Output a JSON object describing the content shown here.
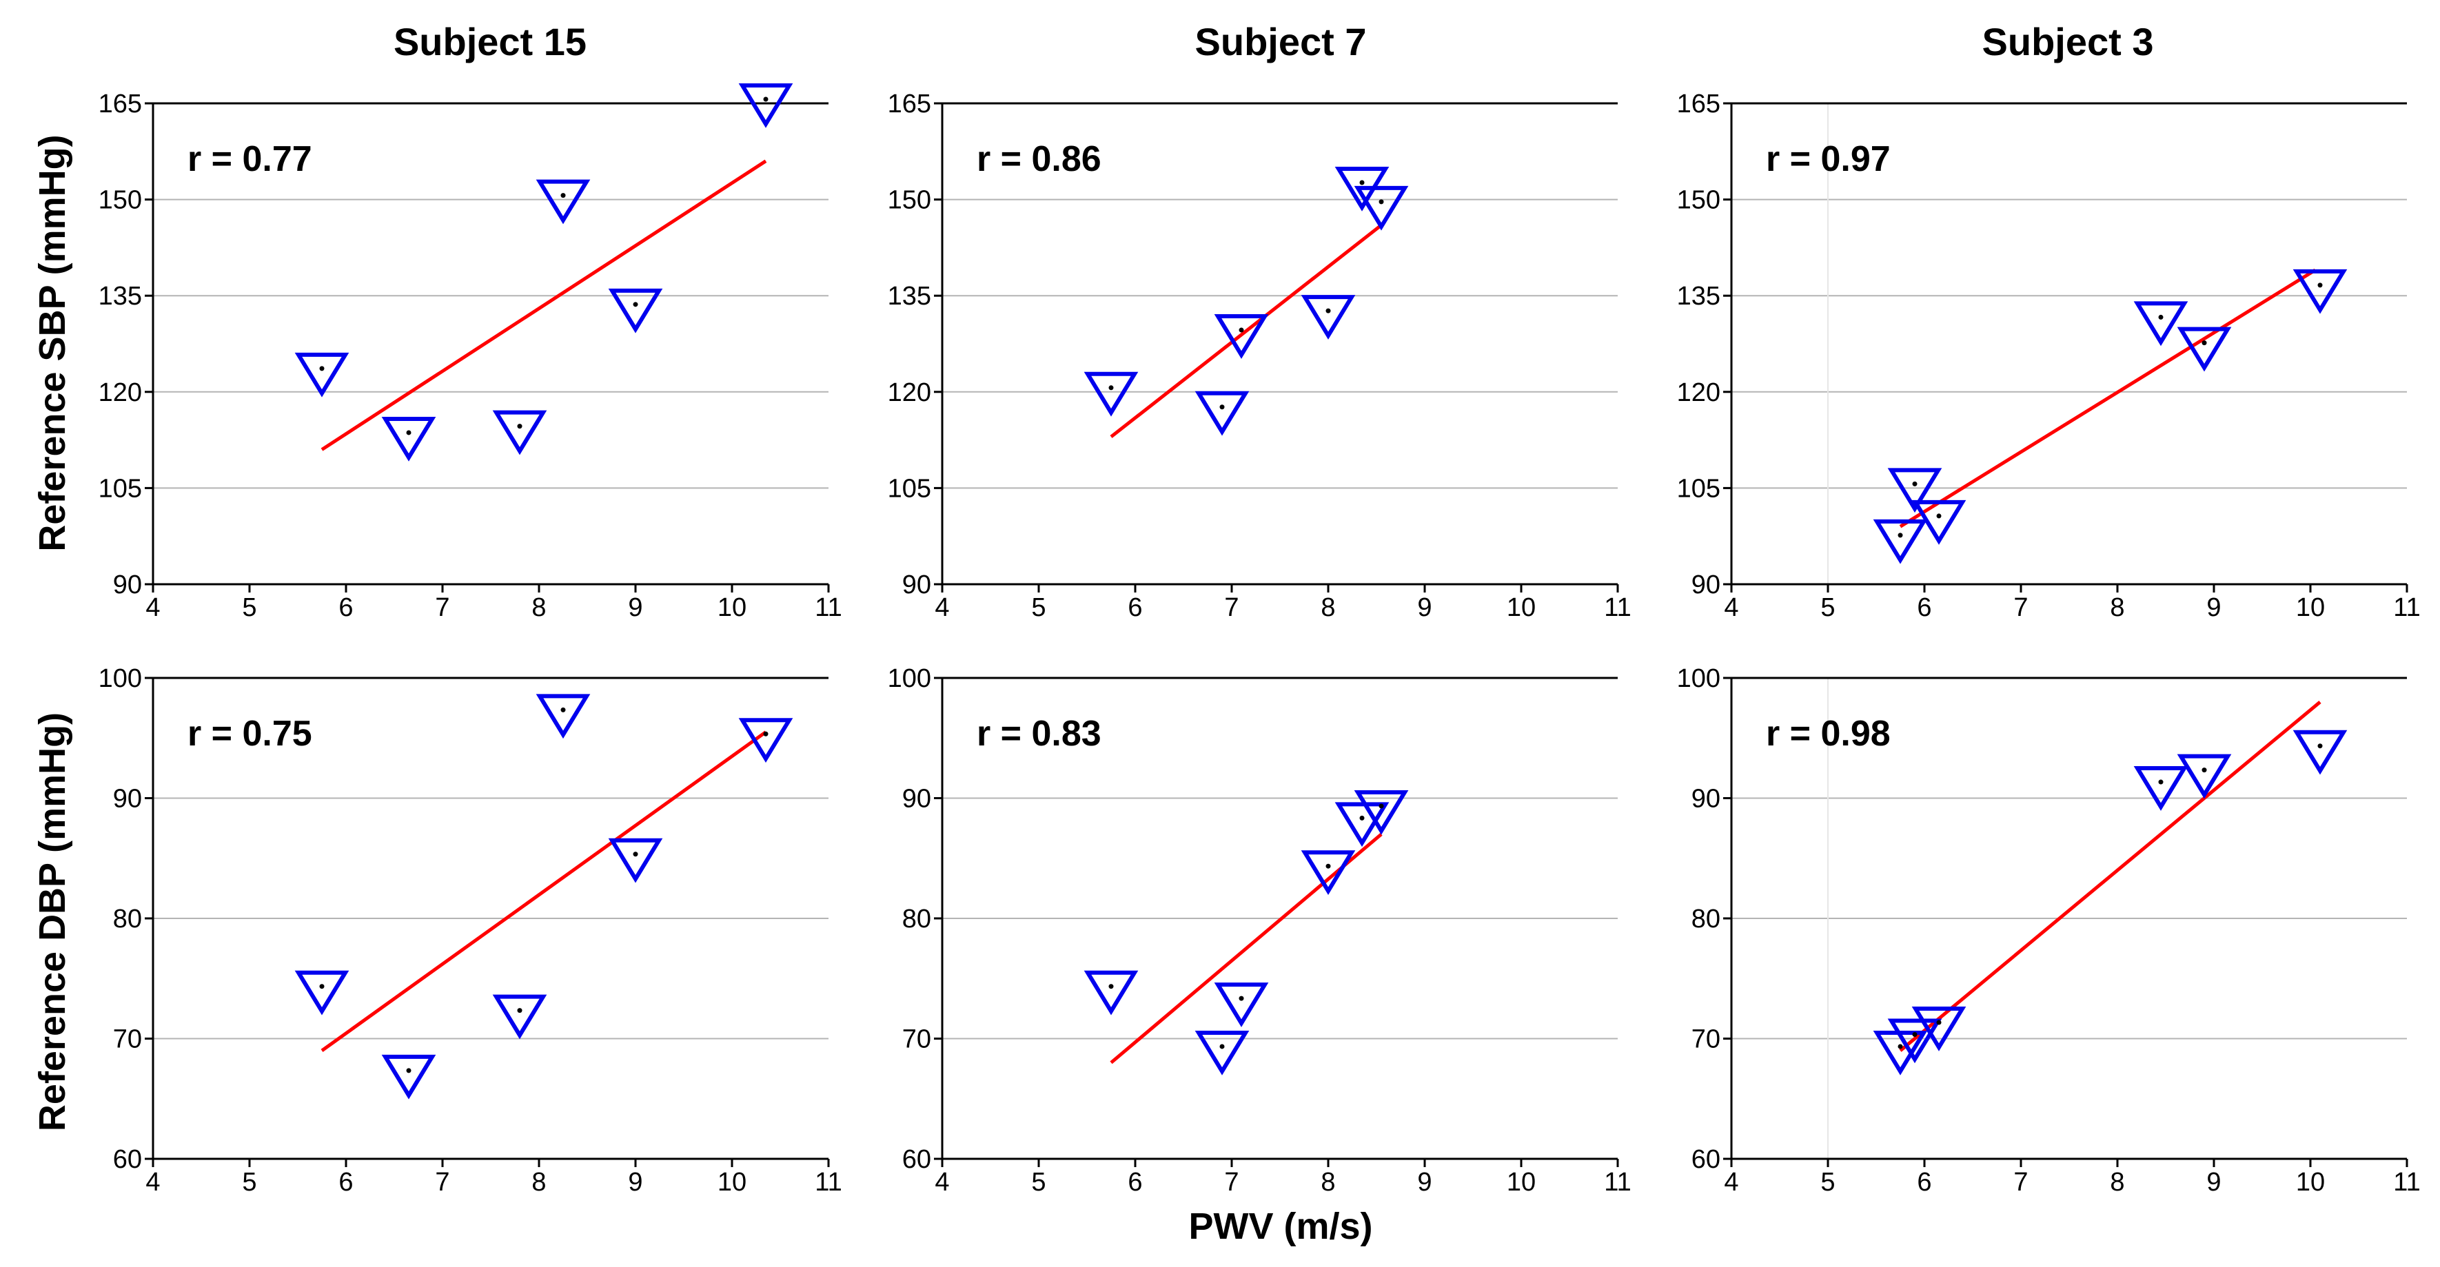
{
  "figure": {
    "x_axis_label": "PWV (m/s)",
    "row_labels": [
      "Reference SBP (mmHg)",
      "Reference DBP (mmHg)"
    ],
    "column_titles": [
      "Subject 15",
      "Subject 7",
      "Subject 3"
    ],
    "marker_color": "#0000ee",
    "fit_color": "#ff0000",
    "grid_color": "#b4b4b4"
  },
  "chart_data": [
    {
      "type": "scatter",
      "title": "Subject 15",
      "ylabel": "Reference SBP (mmHg)",
      "xlim": [
        4,
        11
      ],
      "ylim": [
        90,
        165
      ],
      "xticks": [
        4,
        5,
        6,
        7,
        8,
        9,
        10,
        11
      ],
      "yticks": [
        90,
        105,
        120,
        135,
        150,
        165
      ],
      "annotation": "r = 0.77",
      "points": [
        {
          "x": 5.75,
          "y": 123
        },
        {
          "x": 6.65,
          "y": 113
        },
        {
          "x": 7.8,
          "y": 114
        },
        {
          "x": 8.25,
          "y": 150
        },
        {
          "x": 9.0,
          "y": 133
        },
        {
          "x": 10.35,
          "y": 165
        }
      ],
      "fit": [
        [
          5.75,
          111
        ],
        [
          10.35,
          156
        ]
      ],
      "grid": "horizontal"
    },
    {
      "type": "scatter",
      "title": "Subject 7",
      "ylabel": "Reference SBP (mmHg)",
      "xlim": [
        4,
        11
      ],
      "ylim": [
        90,
        165
      ],
      "xticks": [
        4,
        5,
        6,
        7,
        8,
        9,
        10,
        11
      ],
      "yticks": [
        90,
        105,
        120,
        135,
        150,
        165
      ],
      "annotation": "r = 0.86",
      "points": [
        {
          "x": 5.75,
          "y": 120
        },
        {
          "x": 6.9,
          "y": 117
        },
        {
          "x": 7.1,
          "y": 129
        },
        {
          "x": 8.0,
          "y": 132
        },
        {
          "x": 8.35,
          "y": 152
        },
        {
          "x": 8.55,
          "y": 149
        }
      ],
      "fit": [
        [
          5.75,
          113
        ],
        [
          8.55,
          146
        ]
      ],
      "grid": "horizontal"
    },
    {
      "type": "scatter",
      "title": "Subject 3",
      "ylabel": "Reference SBP (mmHg)",
      "xlim": [
        4,
        11
      ],
      "ylim": [
        90,
        165
      ],
      "xticks": [
        4,
        5,
        6,
        7,
        8,
        9,
        10,
        11
      ],
      "yticks": [
        90,
        105,
        120,
        135,
        150,
        165
      ],
      "annotation": "r = 0.97",
      "points": [
        {
          "x": 5.75,
          "y": 97
        },
        {
          "x": 5.9,
          "y": 105
        },
        {
          "x": 6.15,
          "y": 100
        },
        {
          "x": 8.45,
          "y": 131
        },
        {
          "x": 8.9,
          "y": 127
        },
        {
          "x": 10.1,
          "y": 136
        }
      ],
      "fit": [
        [
          5.75,
          99
        ],
        [
          10.05,
          139
        ]
      ],
      "grid": "horizontal"
    },
    {
      "type": "scatter",
      "title": "",
      "ylabel": "Reference DBP (mmHg)",
      "xlim": [
        4,
        11
      ],
      "ylim": [
        60,
        100
      ],
      "xticks": [
        4,
        5,
        6,
        7,
        8,
        9,
        10,
        11
      ],
      "yticks": [
        60,
        70,
        80,
        90,
        100
      ],
      "annotation": "r = 0.75",
      "points": [
        {
          "x": 5.75,
          "y": 74
        },
        {
          "x": 6.65,
          "y": 67
        },
        {
          "x": 7.8,
          "y": 72
        },
        {
          "x": 8.25,
          "y": 97
        },
        {
          "x": 9.0,
          "y": 85
        },
        {
          "x": 10.35,
          "y": 95
        }
      ],
      "fit": [
        [
          5.75,
          69
        ],
        [
          10.35,
          95.5
        ]
      ],
      "grid": "horizontal"
    },
    {
      "type": "scatter",
      "title": "",
      "ylabel": "Reference DBP (mmHg)",
      "xlim": [
        4,
        11
      ],
      "ylim": [
        60,
        100
      ],
      "xticks": [
        4,
        5,
        6,
        7,
        8,
        9,
        10,
        11
      ],
      "yticks": [
        60,
        70,
        80,
        90,
        100
      ],
      "annotation": "r = 0.83",
      "points": [
        {
          "x": 5.75,
          "y": 74
        },
        {
          "x": 6.9,
          "y": 69
        },
        {
          "x": 7.1,
          "y": 73
        },
        {
          "x": 8.0,
          "y": 84
        },
        {
          "x": 8.35,
          "y": 88
        },
        {
          "x": 8.55,
          "y": 89
        }
      ],
      "fit": [
        [
          5.75,
          68
        ],
        [
          8.55,
          87
        ]
      ],
      "grid": "horizontal"
    },
    {
      "type": "scatter",
      "title": "",
      "ylabel": "Reference DBP (mmHg)",
      "xlim": [
        4,
        11
      ],
      "ylim": [
        60,
        100
      ],
      "xticks": [
        4,
        5,
        6,
        7,
        8,
        9,
        10,
        11
      ],
      "yticks": [
        60,
        70,
        80,
        90,
        100
      ],
      "annotation": "r = 0.98",
      "points": [
        {
          "x": 5.75,
          "y": 69
        },
        {
          "x": 5.9,
          "y": 70
        },
        {
          "x": 6.15,
          "y": 71
        },
        {
          "x": 8.45,
          "y": 91
        },
        {
          "x": 8.9,
          "y": 92
        },
        {
          "x": 10.1,
          "y": 94
        }
      ],
      "fit": [
        [
          5.75,
          69
        ],
        [
          10.1,
          98
        ]
      ],
      "grid": "horizontal"
    }
  ]
}
